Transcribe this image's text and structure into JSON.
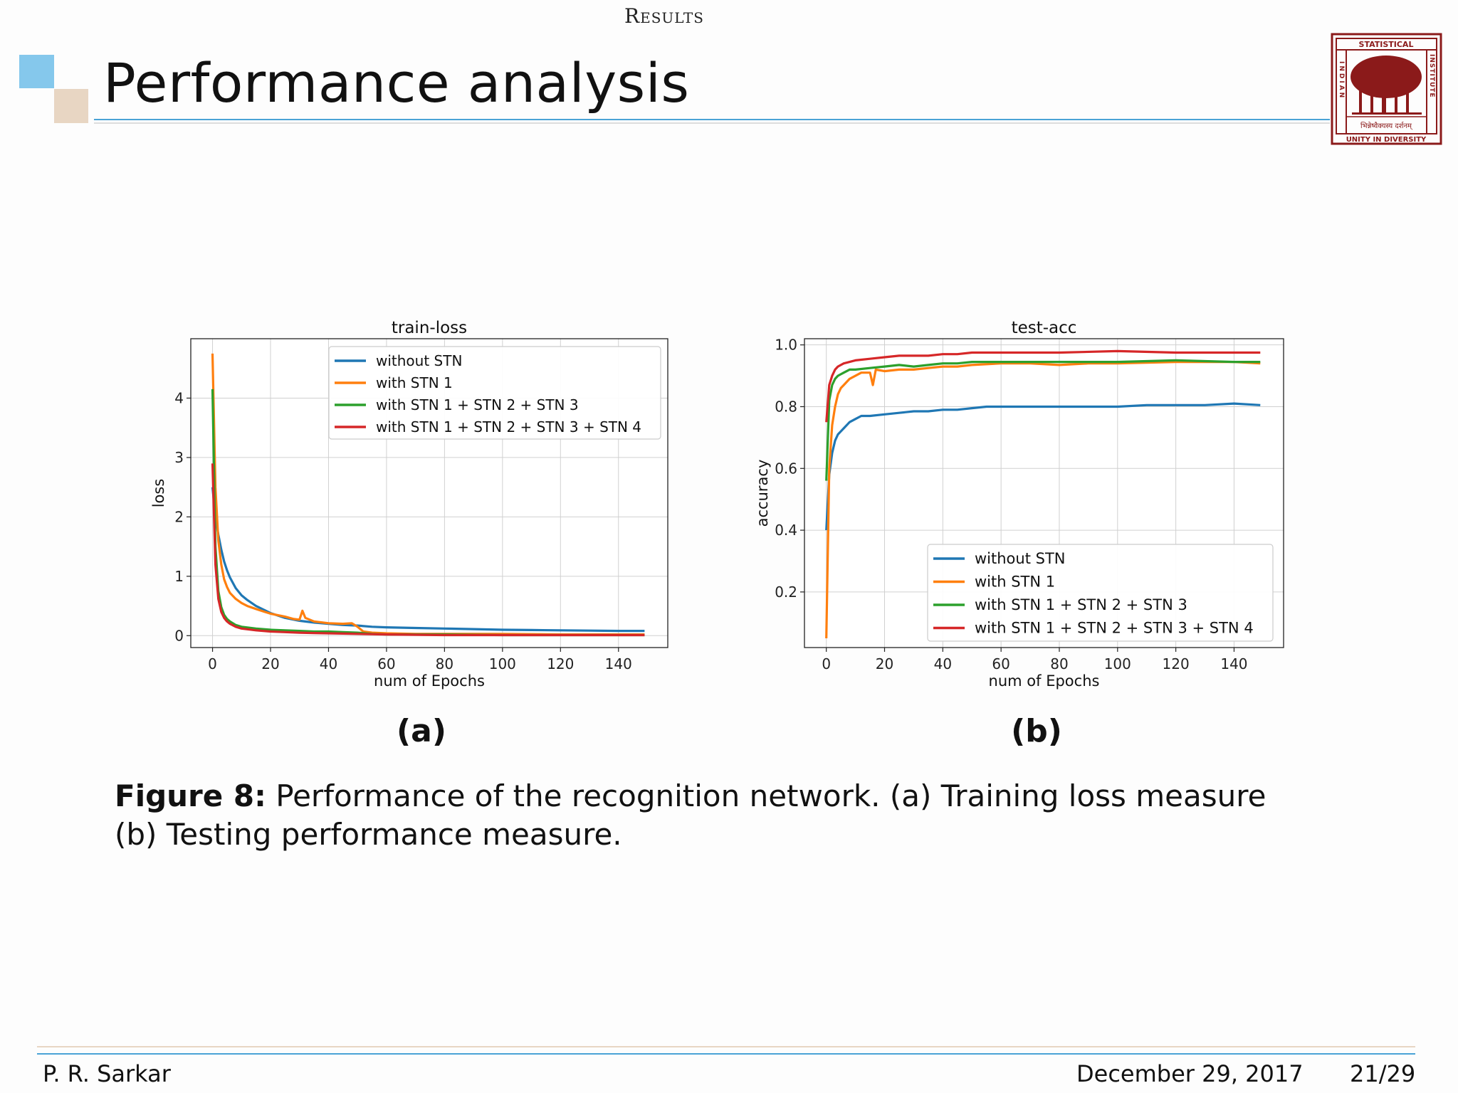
{
  "header": {
    "section": "Results",
    "title": "Performance analysis"
  },
  "logo": {
    "top_text": "STATISTICAL",
    "left_text": "INDIAN",
    "right_text": "INSTITUTE",
    "motto_script": "भिन्नेष्वैक्यस्य दर्शनम्",
    "bottom_text": "UNITY IN DIVERSITY",
    "color": "#8b1a1a"
  },
  "colors": {
    "without_stn": "#1f77b4",
    "stn1": "#ff7f0e",
    "stn123": "#2ca02c",
    "stn1234": "#d62728",
    "accent_blue": "#4aa3d6",
    "accent_tan": "#e8d6c3"
  },
  "panels": {
    "a": "(a)",
    "b": "(b)"
  },
  "caption": {
    "label": "Figure 8:",
    "text": " Performance of the recognition network. (a) Training loss measure (b) Testing performance measure."
  },
  "footer": {
    "author": "P. R. Sarkar",
    "date": "December 29, 2017",
    "page": "21/29"
  },
  "chart_data": [
    {
      "type": "line",
      "title": "train-loss",
      "xlabel": "num of Epochs",
      "ylabel": "loss",
      "xlim": [
        -7.5,
        157
      ],
      "ylim": [
        -0.2,
        5.0
      ],
      "xticks": [
        0,
        20,
        40,
        60,
        80,
        100,
        120,
        140
      ],
      "yticks": [
        0,
        1,
        2,
        3,
        4
      ],
      "grid": true,
      "legend_position": "upper right",
      "series": [
        {
          "name": "without STN",
          "color": "#1f77b4",
          "x": [
            0,
            1,
            2,
            3,
            4,
            5,
            6,
            8,
            10,
            12,
            15,
            20,
            25,
            30,
            35,
            40,
            45,
            50,
            55,
            60,
            70,
            80,
            90,
            100,
            110,
            120,
            130,
            140,
            149
          ],
          "y": [
            2.5,
            2.0,
            1.7,
            1.45,
            1.25,
            1.1,
            0.98,
            0.8,
            0.68,
            0.6,
            0.5,
            0.38,
            0.3,
            0.25,
            0.22,
            0.2,
            0.18,
            0.17,
            0.15,
            0.14,
            0.13,
            0.12,
            0.11,
            0.1,
            0.095,
            0.09,
            0.085,
            0.08,
            0.08
          ]
        },
        {
          "name": "with STN 1",
          "color": "#ff7f0e",
          "x": [
            0,
            1,
            2,
            3,
            4,
            5,
            6,
            8,
            10,
            12,
            15,
            18,
            20,
            25,
            28,
            30,
            31,
            32,
            35,
            40,
            45,
            48,
            50,
            52,
            55,
            60,
            70,
            80,
            100,
            120,
            149
          ],
          "y": [
            4.75,
            2.5,
            1.6,
            1.2,
            0.95,
            0.82,
            0.72,
            0.62,
            0.55,
            0.5,
            0.45,
            0.4,
            0.37,
            0.32,
            0.28,
            0.27,
            0.42,
            0.3,
            0.24,
            0.21,
            0.2,
            0.21,
            0.15,
            0.07,
            0.05,
            0.04,
            0.03,
            0.03,
            0.03,
            0.02,
            0.02
          ]
        },
        {
          "name": "with STN 1 + STN 2 + STN 3",
          "color": "#2ca02c",
          "x": [
            0,
            1,
            2,
            3,
            4,
            5,
            6,
            8,
            10,
            15,
            20,
            25,
            30,
            35,
            40,
            45,
            50,
            55,
            60,
            80,
            100,
            120,
            149
          ],
          "y": [
            4.15,
            1.5,
            0.75,
            0.48,
            0.35,
            0.28,
            0.24,
            0.18,
            0.15,
            0.12,
            0.1,
            0.09,
            0.08,
            0.07,
            0.07,
            0.06,
            0.05,
            0.03,
            0.02,
            0.02,
            0.01,
            0.01,
            0.01
          ]
        },
        {
          "name": "with STN 1 + STN 2 + STN 3 + STN 4",
          "color": "#d62728",
          "x": [
            0,
            1,
            2,
            3,
            4,
            5,
            6,
            8,
            10,
            15,
            20,
            25,
            30,
            35,
            40,
            45,
            50,
            60,
            80,
            100,
            120,
            149
          ],
          "y": [
            2.9,
            1.2,
            0.62,
            0.4,
            0.3,
            0.24,
            0.2,
            0.15,
            0.12,
            0.09,
            0.07,
            0.06,
            0.05,
            0.045,
            0.04,
            0.035,
            0.03,
            0.02,
            0.01,
            0.01,
            0.01,
            0.01
          ]
        }
      ]
    },
    {
      "type": "line",
      "title": "test-acc",
      "xlabel": "num of Epochs",
      "ylabel": "accuracy",
      "xlim": [
        -7.5,
        157
      ],
      "ylim": [
        0.02,
        1.02
      ],
      "xticks": [
        0,
        20,
        40,
        60,
        80,
        100,
        120,
        140
      ],
      "yticks": [
        0.2,
        0.4,
        0.6,
        0.8,
        1.0
      ],
      "ytick_labels": [
        "0.2",
        "0.4",
        "0.6",
        "0.8",
        "1.0"
      ],
      "grid": true,
      "legend_position": "lower right",
      "series": [
        {
          "name": "without STN",
          "color": "#1f77b4",
          "x": [
            0,
            1,
            2,
            3,
            4,
            5,
            6,
            8,
            10,
            12,
            15,
            20,
            25,
            30,
            35,
            40,
            45,
            50,
            55,
            60,
            70,
            80,
            90,
            100,
            110,
            120,
            130,
            140,
            149
          ],
          "y": [
            0.4,
            0.58,
            0.65,
            0.69,
            0.71,
            0.72,
            0.73,
            0.75,
            0.76,
            0.77,
            0.77,
            0.775,
            0.78,
            0.785,
            0.785,
            0.79,
            0.79,
            0.795,
            0.8,
            0.8,
            0.8,
            0.8,
            0.8,
            0.8,
            0.805,
            0.805,
            0.805,
            0.81,
            0.805
          ]
        },
        {
          "name": "with STN 1",
          "color": "#ff7f0e",
          "x": [
            0,
            1,
            2,
            3,
            4,
            5,
            6,
            8,
            10,
            12,
            15,
            16,
            17,
            20,
            25,
            30,
            35,
            40,
            45,
            50,
            60,
            70,
            80,
            90,
            100,
            120,
            140,
            149
          ],
          "y": [
            0.05,
            0.6,
            0.74,
            0.8,
            0.84,
            0.86,
            0.87,
            0.89,
            0.9,
            0.91,
            0.91,
            0.87,
            0.92,
            0.915,
            0.92,
            0.92,
            0.925,
            0.93,
            0.93,
            0.935,
            0.94,
            0.94,
            0.935,
            0.94,
            0.94,
            0.945,
            0.945,
            0.94
          ]
        },
        {
          "name": "with STN 1 + STN 2 + STN 3",
          "color": "#2ca02c",
          "x": [
            0,
            1,
            2,
            3,
            4,
            5,
            6,
            8,
            10,
            15,
            20,
            25,
            30,
            35,
            40,
            45,
            50,
            60,
            80,
            100,
            120,
            140,
            149
          ],
          "y": [
            0.56,
            0.82,
            0.87,
            0.89,
            0.9,
            0.905,
            0.91,
            0.92,
            0.92,
            0.925,
            0.93,
            0.935,
            0.93,
            0.935,
            0.94,
            0.94,
            0.945,
            0.945,
            0.945,
            0.945,
            0.95,
            0.945,
            0.945
          ]
        },
        {
          "name": "with STN 1 + STN 2 + STN 3 + STN 4",
          "color": "#d62728",
          "x": [
            0,
            1,
            2,
            3,
            4,
            5,
            6,
            8,
            10,
            15,
            20,
            25,
            30,
            35,
            40,
            45,
            50,
            60,
            80,
            100,
            120,
            140,
            149
          ],
          "y": [
            0.75,
            0.87,
            0.9,
            0.92,
            0.93,
            0.935,
            0.94,
            0.945,
            0.95,
            0.955,
            0.96,
            0.965,
            0.965,
            0.965,
            0.97,
            0.97,
            0.975,
            0.975,
            0.975,
            0.98,
            0.975,
            0.975,
            0.975
          ]
        }
      ]
    }
  ]
}
